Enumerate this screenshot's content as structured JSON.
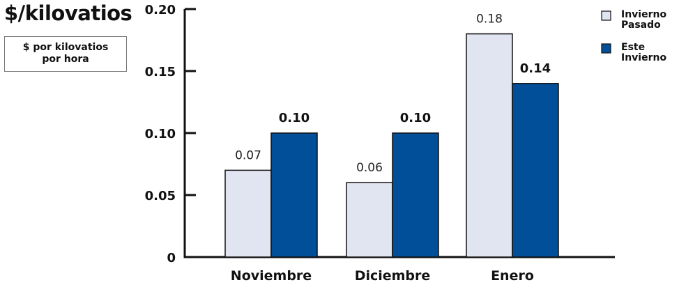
{
  "header": {
    "title": "$/kilovatios",
    "unit_line1": "$ por kilovatios",
    "unit_line2": "por hora"
  },
  "chart_data": {
    "type": "bar",
    "categories": [
      "Noviembre",
      "Diciembre",
      "Enero"
    ],
    "series": [
      {
        "name": "Invierno Pasado",
        "values": [
          0.07,
          0.06,
          0.18
        ],
        "labels": [
          "0.07",
          "0.06",
          "0.18"
        ],
        "color": "#E1E4F1",
        "label_style": "normal"
      },
      {
        "name": "Este Invierno",
        "values": [
          0.1,
          0.1,
          0.14
        ],
        "labels": [
          "0.10",
          "0.10",
          "0.14"
        ],
        "color": "#004F98",
        "label_style": "bold"
      }
    ],
    "legend": [
      {
        "line1": "Invierno",
        "line2": "Pasado"
      },
      {
        "line1": "Este",
        "line2": "Invierno"
      }
    ],
    "yticks": [
      "0",
      "0.05",
      "0.10",
      "0.15",
      "0.20"
    ],
    "ytick_values": [
      0,
      0.05,
      0.1,
      0.15,
      0.2
    ],
    "ylim": [
      0,
      0.2
    ],
    "grid": false,
    "legend_position": "top-right"
  }
}
